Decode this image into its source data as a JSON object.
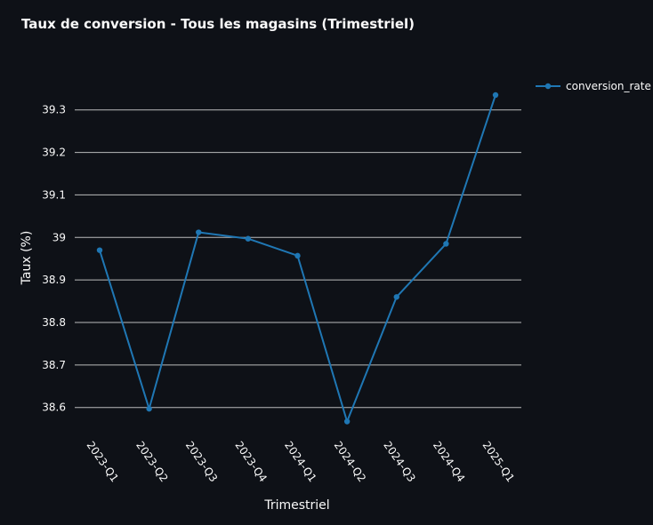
{
  "chart_data": {
    "type": "line",
    "title": "Taux de conversion - Tous les magasins (Trimestriel)",
    "xlabel": "Trimestriel",
    "ylabel": "Taux (%)",
    "categories": [
      "2023-Q1",
      "2023-Q2",
      "2023-Q3",
      "2023-Q4",
      "2024-Q1",
      "2024-Q2",
      "2024-Q3",
      "2024-Q4",
      "2025-Q1"
    ],
    "series": [
      {
        "name": "conversion_rate",
        "color": "#1f77b4",
        "values": [
          38.97,
          38.597,
          39.012,
          38.997,
          38.957,
          38.567,
          38.86,
          38.985,
          39.335
        ]
      }
    ],
    "yticks": [
      "38.6",
      "38.7",
      "38.8",
      "38.9",
      "39",
      "39.1",
      "39.2",
      "39.3"
    ],
    "ylim": [
      38.52,
      39.36
    ],
    "grid": "horizontal",
    "legend": "top-right"
  }
}
